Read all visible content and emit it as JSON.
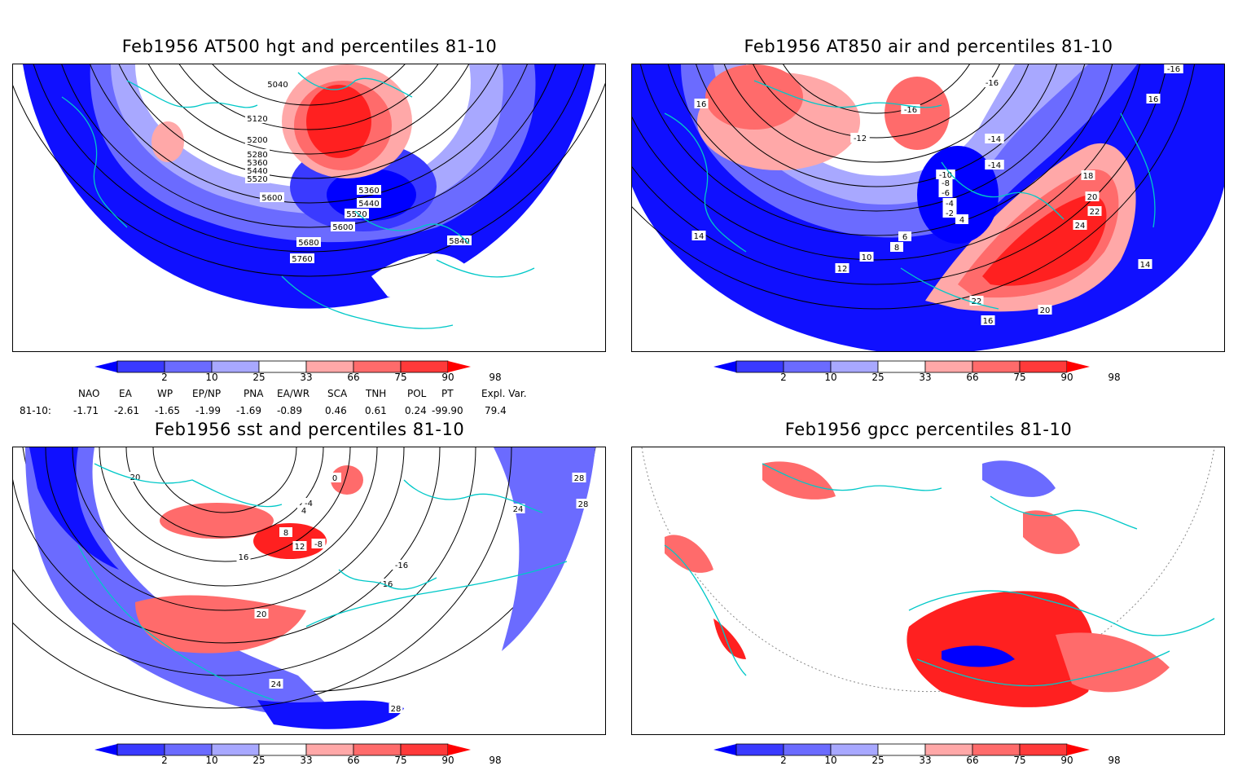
{
  "panels": [
    {
      "id": "hgt500",
      "title": "Feb1956 AT500 hgt and percentiles 81-10",
      "contour_labels": [
        "5040",
        "5120",
        "5200",
        "5280",
        "5360",
        "5440",
        "5520",
        "5600",
        "5360",
        "5440",
        "5520",
        "5600",
        "5680",
        "5760",
        "5840"
      ]
    },
    {
      "id": "air850",
      "title": "Feb1956 AT850 air and percentiles 81-10",
      "contour_labels": [
        "-16",
        "-16",
        "-14",
        "-14",
        "-16",
        "-12",
        "-10",
        "-8",
        "-6",
        "-4",
        "-2",
        "4",
        "16",
        "16",
        "18",
        "20",
        "22",
        "24",
        "22",
        "20",
        "16",
        "14",
        "14",
        "12",
        "10",
        "8",
        "6"
      ]
    },
    {
      "id": "sst",
      "title": "Feb1956 sst and percentiles 81-10",
      "contour_labels": [
        "20",
        "0",
        "4",
        "8",
        "12",
        "16",
        "-4",
        "-8",
        "-16",
        "16",
        "20",
        "24",
        "24",
        "28",
        "28",
        "28"
      ]
    },
    {
      "id": "gpcc",
      "title": "Feb1956 gpcc percentiles 81-10",
      "contour_labels": []
    }
  ],
  "colorbar": {
    "labels": [
      "2",
      "10",
      "25",
      "33",
      "66",
      "75",
      "90",
      "98"
    ],
    "colors": [
      "#0000ff",
      "#3a3aff",
      "#6b6bff",
      "#a8a8ff",
      "#ffffff",
      "#ffa8a8",
      "#ff6b6b",
      "#ff3a3a",
      "#ff0000"
    ]
  },
  "indices": {
    "headers": [
      "NAO",
      "EA",
      "WP",
      "EP/NP",
      "PNA",
      "EA/WR",
      "SCA",
      "TNH",
      "POL",
      "PT",
      "Expl. Var."
    ],
    "row_label": "81-10:",
    "values": [
      "-1.71",
      "-2.61",
      "-1.65",
      "-1.99",
      "-1.69",
      "-0.89",
      "0.46",
      "0.61",
      "0.24",
      "-99.90",
      "79.4"
    ]
  },
  "colors": {
    "coast": "#00c8c8",
    "contour": "#000000",
    "deep_blue": "#1010ff",
    "deep_red": "#ff2020"
  }
}
